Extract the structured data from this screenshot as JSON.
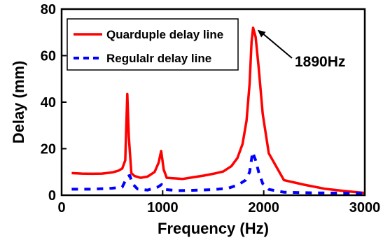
{
  "chart_data": {
    "type": "line",
    "xlabel": "Frequency (Hz)",
    "ylabel": "Delay (mm)",
    "xlim": [
      0,
      3000
    ],
    "ylim": [
      0,
      80
    ],
    "xticks": [
      0,
      1000,
      2000,
      3000
    ],
    "yticks": [
      0,
      20,
      40,
      60,
      80
    ],
    "grid": false,
    "legend_position": "top-left",
    "series": [
      {
        "name": "Quarduple delay line",
        "color": "#ff0000",
        "style": "solid",
        "x": [
          100,
          200,
          300,
          400,
          500,
          560,
          600,
          630,
          650,
          665,
          690,
          720,
          780,
          850,
          920,
          960,
          985,
          1010,
          1040,
          1100,
          1200,
          1300,
          1400,
          1500,
          1600,
          1680,
          1740,
          1790,
          1830,
          1860,
          1880,
          1895,
          1920,
          1950,
          1990,
          2050,
          2200,
          2400,
          2600,
          2800,
          3000
        ],
        "y": [
          9.5,
          9.3,
          9.2,
          9.3,
          9.8,
          10.5,
          11.5,
          15,
          43.5,
          25,
          9.5,
          8.3,
          7.5,
          8,
          10,
          14,
          19,
          11,
          7.5,
          7.3,
          7,
          7.7,
          8.4,
          9.2,
          10.2,
          12.5,
          16,
          22,
          32,
          48,
          66,
          72,
          68,
          55,
          35,
          18,
          6.5,
          4.5,
          2.8,
          1.8,
          1.0
        ]
      },
      {
        "name": "Regulalr delay line",
        "color": "#0000ff",
        "style": "dashed",
        "x": [
          100,
          300,
          500,
          600,
          650,
          675,
          700,
          750,
          850,
          950,
          990,
          1030,
          1150,
          1300,
          1500,
          1650,
          1750,
          1820,
          1860,
          1890,
          1920,
          1950,
          1990,
          2050,
          2200,
          2500,
          2800,
          3000
        ],
        "y": [
          2.6,
          2.6,
          3.0,
          3.5,
          8,
          8.5,
          5,
          2.7,
          2.2,
          3.5,
          4.6,
          2.4,
          2.0,
          2.1,
          2.4,
          3.0,
          4.5,
          6.5,
          10,
          18.5,
          15,
          10,
          5,
          2.5,
          1.3,
          1.0,
          0.9,
          0.8
        ]
      }
    ],
    "annotations": [
      {
        "text": "1890Hz",
        "x": 1890,
        "y": 72
      }
    ]
  }
}
